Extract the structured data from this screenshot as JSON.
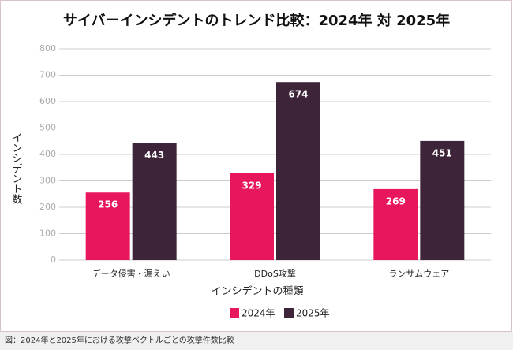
{
  "chart_data": {
    "type": "bar",
    "title": "サイバーインシデントのトレンド比較：2024年 対 2025年",
    "x_label": "インシデントの種類",
    "y_label": "インシデント数",
    "categories": [
      "データ侵害・漏えい",
      "DDoS攻撃",
      "ランサムウェア"
    ],
    "series": [
      {
        "name": "2024年",
        "color": "#e8175d",
        "values": [
          256,
          329,
          269
        ]
      },
      {
        "name": "2025年",
        "color": "#3d2438",
        "values": [
          443,
          674,
          451
        ]
      }
    ],
    "ylim": [
      0,
      800
    ],
    "yticks": [
      0,
      100,
      200,
      300,
      400,
      500,
      600,
      700,
      800
    ],
    "grid": true,
    "legend": "bottom",
    "caption": "図：2024年と2025年における攻撃ベクトルごとの攻撃件数比較"
  }
}
